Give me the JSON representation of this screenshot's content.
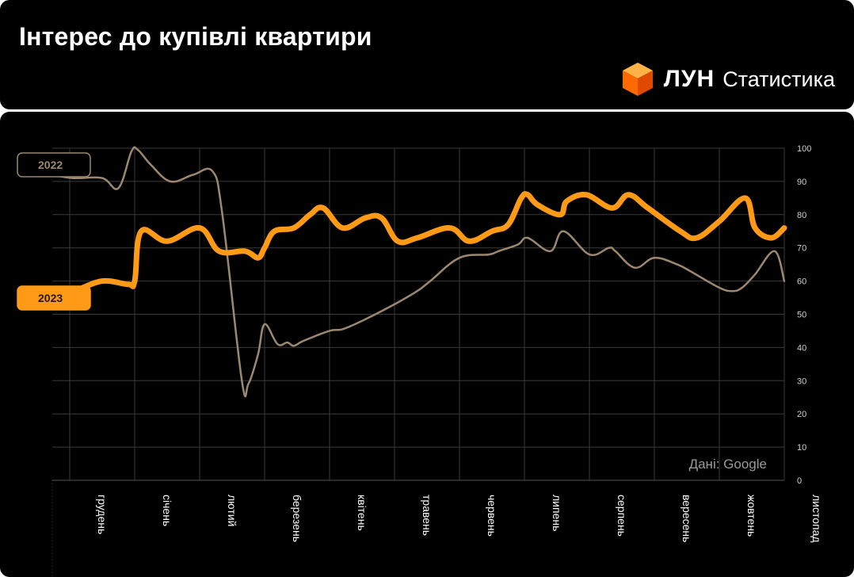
{
  "header": {
    "title": "Інтерес до купівлі квартири",
    "brand_name": "ЛУН",
    "brand_sub": "Статистика"
  },
  "chart_data": {
    "type": "line",
    "title": "Інтерес до купівлі квартири",
    "ylim": [
      0,
      100
    ],
    "yticks": [
      0,
      10,
      20,
      30,
      40,
      50,
      60,
      70,
      80,
      90,
      100
    ],
    "months": [
      "грудень",
      "січень",
      "лютий",
      "березень",
      "квітень",
      "травень",
      "червень",
      "липень",
      "серпень",
      "вересень",
      "жовтень",
      "листопад"
    ],
    "xlim": [
      0,
      11
    ],
    "grid": true,
    "source_note": "Дані: Google",
    "series": [
      {
        "name": "2022",
        "color": "#9c8870",
        "x": [
          -0.6,
          0.05,
          0.5,
          0.75,
          0.95,
          1.05,
          1.25,
          1.55,
          1.9,
          2.2,
          2.35,
          2.65,
          2.75,
          2.9,
          3.0,
          3.2,
          3.35,
          3.45,
          3.6,
          4.0,
          4.2,
          4.5,
          5.0,
          5.35,
          5.55,
          6.0,
          6.45,
          6.6,
          6.9,
          7.05,
          7.4,
          7.6,
          8.0,
          8.3,
          8.4,
          8.7,
          9.0,
          9.35,
          9.55,
          10.0,
          10.2,
          10.35,
          10.55,
          10.85,
          11.0
        ],
        "values": [
          92,
          91,
          91,
          88,
          99,
          99.5,
          95,
          90,
          92,
          93,
          80,
          30,
          29,
          38,
          47,
          41,
          41.5,
          40.5,
          42,
          45,
          45.5,
          48,
          53,
          57,
          60,
          67,
          68,
          69,
          71,
          73,
          69,
          75,
          68,
          70,
          69,
          64,
          67,
          65,
          63,
          58,
          57,
          58,
          62,
          69,
          60
        ]
      },
      {
        "name": "2023",
        "color": "#ff9a16",
        "x": [
          -0.6,
          0.05,
          0.5,
          0.9,
          1.0,
          1.1,
          1.5,
          2.0,
          2.3,
          2.7,
          2.9,
          3.0,
          3.15,
          3.45,
          3.7,
          3.9,
          4.2,
          4.55,
          4.8,
          5.05,
          5.35,
          5.85,
          6.15,
          6.5,
          6.75,
          6.95,
          7.05,
          7.2,
          7.55,
          7.65,
          7.95,
          8.35,
          8.6,
          8.9,
          9.4,
          9.65,
          10.0,
          10.4,
          10.55,
          10.8,
          11.0
        ],
        "values": [
          57,
          57,
          60,
          59,
          60,
          75,
          72,
          76,
          69,
          69,
          67,
          70,
          75,
          76,
          80,
          82,
          76,
          79,
          79,
          72,
          73,
          76,
          72,
          75,
          77,
          85,
          86,
          83,
          80,
          84,
          86,
          82,
          86,
          82,
          75,
          73,
          78,
          85,
          76,
          73,
          76
        ]
      }
    ]
  }
}
